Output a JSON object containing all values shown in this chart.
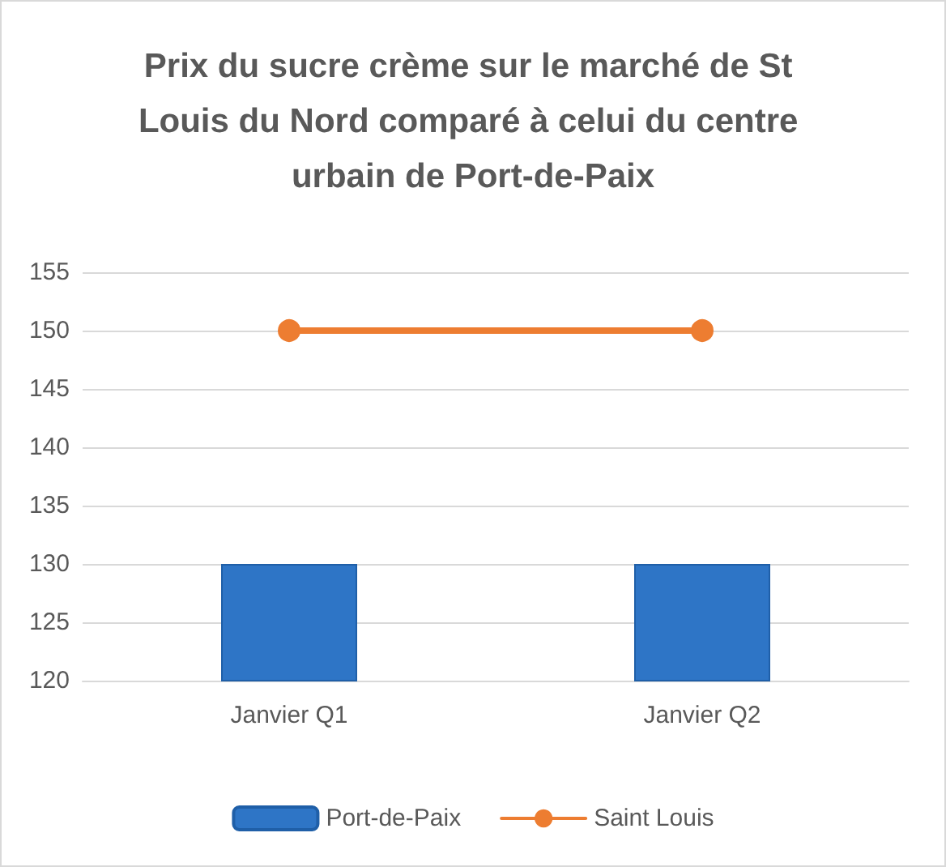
{
  "chart_data": {
    "type": "bar",
    "title": "Prix du sucre crème sur le marché de St Louis du Nord comparé à celui du centre urbain de Port-de-Paix",
    "categories": [
      "Janvier Q1",
      "Janvier Q2"
    ],
    "series": [
      {
        "name": "Port-de-Paix",
        "color": "#2e75c6",
        "values": [
          130,
          130
        ]
      },
      {
        "name": "Saint Louis",
        "type": "line",
        "color": "#ed7d31",
        "values": [
          150,
          150
        ],
        "marker": "circle"
      }
    ],
    "ylim": [
      120,
      155
    ],
    "yticks": [
      120,
      125,
      130,
      135,
      140,
      145,
      150,
      155
    ],
    "grid": "y",
    "legend": "bottom"
  }
}
